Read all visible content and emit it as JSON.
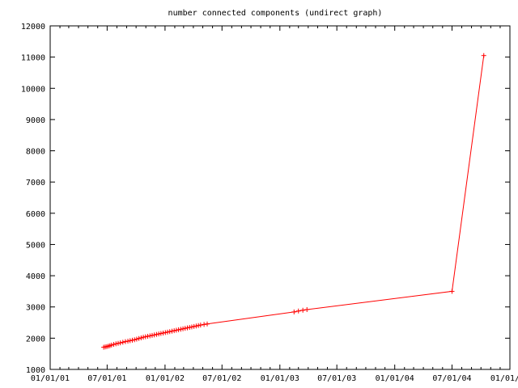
{
  "chart_data": {
    "type": "line",
    "title": "number connected components (undirect graph)",
    "xlabel": "",
    "ylabel": "",
    "ylim": [
      1000,
      12000
    ],
    "xlim": [
      "01/01/01",
      "01/01/05"
    ],
    "yticks": [
      1000,
      2000,
      3000,
      4000,
      5000,
      6000,
      7000,
      8000,
      9000,
      10000,
      11000,
      12000
    ],
    "xticks": [
      "01/01/01",
      "07/01/01",
      "01/01/02",
      "07/01/02",
      "01/01/03",
      "07/01/03",
      "01/01/04",
      "07/01/04",
      "01/01/05"
    ],
    "grid": false,
    "line_color": "#ff0000",
    "series": [
      {
        "values": [
          {
            "x": "2001-06-20",
            "y": 1710
          },
          {
            "x": "2001-06-25",
            "y": 1720
          },
          {
            "x": "2001-06-30",
            "y": 1730
          },
          {
            "x": "2001-07-05",
            "y": 1745
          },
          {
            "x": "2001-07-10",
            "y": 1760
          },
          {
            "x": "2001-07-15",
            "y": 1780
          },
          {
            "x": "2001-07-22",
            "y": 1800
          },
          {
            "x": "2001-07-29",
            "y": 1820
          },
          {
            "x": "2001-08-05",
            "y": 1835
          },
          {
            "x": "2001-08-12",
            "y": 1850
          },
          {
            "x": "2001-08-20",
            "y": 1870
          },
          {
            "x": "2001-08-28",
            "y": 1890
          },
          {
            "x": "2001-09-05",
            "y": 1905
          },
          {
            "x": "2001-09-12",
            "y": 1920
          },
          {
            "x": "2001-09-19",
            "y": 1935
          },
          {
            "x": "2001-09-26",
            "y": 1950
          },
          {
            "x": "2001-10-03",
            "y": 1970
          },
          {
            "x": "2001-10-10",
            "y": 1990
          },
          {
            "x": "2001-10-17",
            "y": 2010
          },
          {
            "x": "2001-10-24",
            "y": 2030
          },
          {
            "x": "2001-10-31",
            "y": 2045
          },
          {
            "x": "2001-11-07",
            "y": 2060
          },
          {
            "x": "2001-11-14",
            "y": 2075
          },
          {
            "x": "2001-11-21",
            "y": 2090
          },
          {
            "x": "2001-11-28",
            "y": 2105
          },
          {
            "x": "2001-12-05",
            "y": 2120
          },
          {
            "x": "2001-12-12",
            "y": 2135
          },
          {
            "x": "2001-12-19",
            "y": 2150
          },
          {
            "x": "2001-12-26",
            "y": 2165
          },
          {
            "x": "2002-01-02",
            "y": 2180
          },
          {
            "x": "2002-01-09",
            "y": 2195
          },
          {
            "x": "2002-01-16",
            "y": 2210
          },
          {
            "x": "2002-01-23",
            "y": 2225
          },
          {
            "x": "2002-01-30",
            "y": 2240
          },
          {
            "x": "2002-02-06",
            "y": 2255
          },
          {
            "x": "2002-02-13",
            "y": 2270
          },
          {
            "x": "2002-02-20",
            "y": 2285
          },
          {
            "x": "2002-02-27",
            "y": 2300
          },
          {
            "x": "2002-03-06",
            "y": 2315
          },
          {
            "x": "2002-03-13",
            "y": 2330
          },
          {
            "x": "2002-03-20",
            "y": 2345
          },
          {
            "x": "2002-03-27",
            "y": 2360
          },
          {
            "x": "2002-04-03",
            "y": 2375
          },
          {
            "x": "2002-04-10",
            "y": 2390
          },
          {
            "x": "2002-04-17",
            "y": 2405
          },
          {
            "x": "2002-04-24",
            "y": 2420
          },
          {
            "x": "2002-05-05",
            "y": 2440
          },
          {
            "x": "2002-05-15",
            "y": 2455
          },
          {
            "x": "2003-02-15",
            "y": 2840
          },
          {
            "x": "2003-03-01",
            "y": 2870
          },
          {
            "x": "2003-03-15",
            "y": 2895
          },
          {
            "x": "2003-03-28",
            "y": 2915
          },
          {
            "x": "2004-07-01",
            "y": 3500
          },
          {
            "x": "2004-10-10",
            "y": 11050
          }
        ]
      }
    ]
  }
}
